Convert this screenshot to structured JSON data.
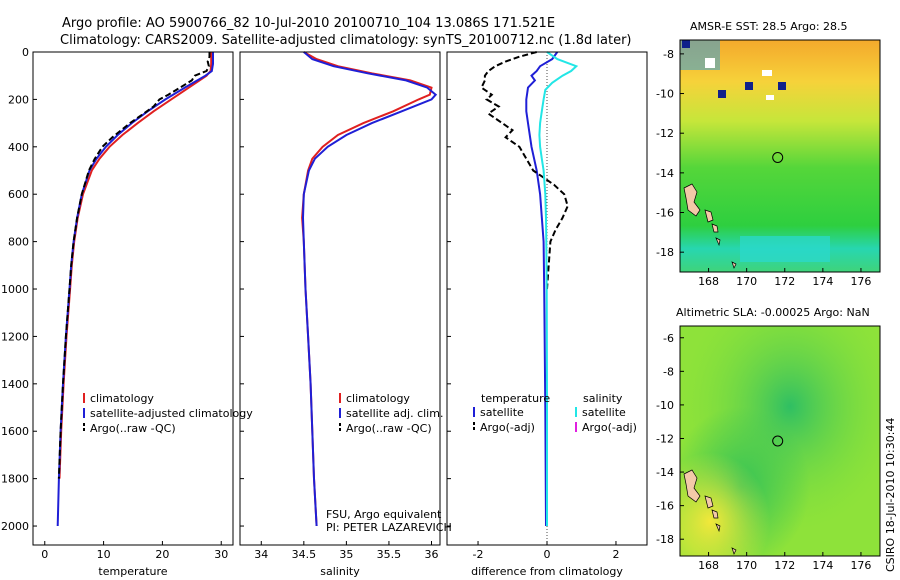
{
  "header": {
    "line1": "Argo profile: AO 5900766_82 10-Jul-2010 20100710_104 13.086S 171.521E",
    "line2": "Climatology: CARS2009. Satellite-adjusted climatology: synTS_20100712.nc (1.8d later)"
  },
  "colors": {
    "clim": "#e02020",
    "sat": "#1f1fd6",
    "argo": "#000000",
    "sal_sat": "#22e6e6",
    "sal_argo": "#e020e0"
  },
  "chart_data": [
    {
      "type": "line",
      "title": "",
      "xlabel": "temperature",
      "ylabel": "",
      "xlim": [
        -2,
        32
      ],
      "ylim": [
        2080,
        0
      ],
      "xticks": [
        0,
        10,
        20,
        30
      ],
      "yticks": [
        0,
        200,
        400,
        600,
        800,
        1000,
        1200,
        1400,
        1600,
        1800,
        2000
      ],
      "legend": [
        "climatology",
        "satellite-adjusted climatology",
        "Argo(..raw -QC)"
      ],
      "series": [
        {
          "name": "climatology",
          "key": "clim",
          "dash": "",
          "depth": [
            0,
            50,
            80,
            100,
            150,
            200,
            250,
            300,
            350,
            400,
            450,
            500,
            600,
            700,
            800,
            900,
            1000,
            1200,
            1400,
            1600,
            1800
          ],
          "values": [
            28.3,
            28.3,
            28.2,
            27.5,
            24.5,
            21.5,
            18.5,
            15.8,
            13.2,
            11.0,
            9.3,
            8.0,
            6.5,
            5.6,
            5.0,
            4.6,
            4.3,
            3.7,
            3.2,
            2.8,
            2.5
          ]
        },
        {
          "name": "satellite-adjusted climatology",
          "key": "sat",
          "dash": "",
          "depth": [
            0,
            50,
            80,
            100,
            150,
            200,
            250,
            300,
            350,
            400,
            450,
            500,
            600,
            700,
            800,
            900,
            1000,
            1200,
            1400,
            1600,
            1800,
            2000
          ],
          "values": [
            28.6,
            28.6,
            28.4,
            27.3,
            23.8,
            20.5,
            17.5,
            14.8,
            12.4,
            10.4,
            8.8,
            7.6,
            6.3,
            5.5,
            4.9,
            4.5,
            4.2,
            3.6,
            3.1,
            2.7,
            2.4,
            2.2
          ]
        },
        {
          "name": "Argo(..raw -QC)",
          "key": "argo",
          "dash": "6,3",
          "depth": [
            0,
            20,
            40,
            60,
            80,
            100,
            120,
            150,
            180,
            200,
            230,
            260,
            300,
            330,
            360,
            400,
            450,
            500,
            600,
            700,
            800,
            900,
            1000,
            1200,
            1400,
            1600,
            1800
          ],
          "values": [
            28.0,
            28.0,
            27.7,
            27.9,
            27.5,
            25.5,
            25.0,
            23.0,
            21.0,
            19.5,
            18.5,
            16.8,
            14.5,
            13.0,
            11.5,
            9.8,
            8.5,
            7.5,
            6.3,
            5.5,
            4.9,
            4.5,
            4.2,
            3.6,
            3.1,
            2.7,
            2.4
          ]
        }
      ]
    },
    {
      "type": "line",
      "xlabel": "salinity",
      "xlim": [
        33.75,
        36.1
      ],
      "ylim": [
        2080,
        0
      ],
      "xticks": [
        34,
        34.5,
        35,
        35.5,
        36
      ],
      "legend": [
        "climatology",
        "satellite adj. clim.",
        "Argo(..raw -QC)"
      ],
      "series": [
        {
          "name": "climatology",
          "key": "clim",
          "dash": "",
          "depth": [
            0,
            30,
            60,
            90,
            120,
            150,
            180,
            200,
            250,
            300,
            350,
            400,
            450,
            500,
            600,
            700,
            800,
            1000,
            1200,
            1400,
            1600,
            1800,
            2000
          ],
          "values": [
            34.5,
            34.65,
            34.9,
            35.3,
            35.75,
            36.0,
            35.98,
            35.85,
            35.55,
            35.2,
            34.9,
            34.72,
            34.6,
            34.55,
            34.5,
            34.48,
            34.5,
            34.52,
            34.55,
            34.58,
            34.6,
            34.62,
            34.65
          ]
        },
        {
          "name": "satellite adj. clim.",
          "key": "sat",
          "dash": "",
          "depth": [
            0,
            30,
            60,
            90,
            120,
            150,
            180,
            200,
            250,
            300,
            350,
            400,
            450,
            500,
            600,
            700,
            800,
            1000,
            1200,
            1400,
            1600,
            1800,
            2000
          ],
          "values": [
            34.5,
            34.6,
            34.85,
            35.25,
            35.7,
            35.95,
            36.05,
            36.0,
            35.65,
            35.3,
            35.0,
            34.78,
            34.63,
            34.56,
            34.5,
            34.49,
            34.5,
            34.52,
            34.55,
            34.58,
            34.6,
            34.62,
            34.65
          ]
        }
      ]
    },
    {
      "type": "line",
      "xlabel": "difference from climatology",
      "xlim": [
        -2.9,
        2.9
      ],
      "ylim": [
        2080,
        0
      ],
      "xticks": [
        -2,
        0,
        2
      ],
      "legend_temperature": {
        "heading": "temperature",
        "items": [
          "satellite",
          "Argo(-adj)"
        ]
      },
      "legend_salinity": {
        "heading": "salinity",
        "items": [
          "satellite",
          "Argo(-adj)"
        ]
      },
      "series": [
        {
          "name": "temperature satellite",
          "key": "sat",
          "dash": "",
          "depth": [
            0,
            30,
            60,
            80,
            100,
            120,
            150,
            200,
            250,
            300,
            400,
            500,
            600,
            800,
            1000,
            1500,
            2000
          ],
          "values": [
            0.3,
            0.15,
            -0.2,
            -0.3,
            -0.45,
            -0.35,
            -0.55,
            -0.6,
            -0.6,
            -0.55,
            -0.45,
            -0.3,
            -0.2,
            -0.1,
            -0.08,
            -0.05,
            -0.03
          ]
        },
        {
          "name": "temperature Argo(-adj)",
          "key": "argo",
          "dash": "6,3",
          "depth": [
            0,
            20,
            40,
            60,
            80,
            100,
            120,
            150,
            180,
            200,
            230,
            260,
            300,
            330,
            360,
            400,
            450,
            500,
            530,
            560,
            600,
            650,
            700,
            750,
            800,
            900,
            1000
          ],
          "values": [
            -0.3,
            -0.8,
            -1.2,
            -1.5,
            -1.7,
            -1.8,
            -1.8,
            -1.9,
            -1.6,
            -1.75,
            -1.4,
            -1.7,
            -1.3,
            -1.0,
            -1.2,
            -0.8,
            -0.6,
            -0.4,
            -0.1,
            0.2,
            0.5,
            0.6,
            0.45,
            0.25,
            0.1,
            0.05,
            0.0
          ]
        },
        {
          "name": "salinity satellite",
          "key": "sal_sat",
          "dash": "",
          "depth": [
            0,
            30,
            60,
            80,
            100,
            130,
            160,
            200,
            250,
            300,
            350,
            400,
            450,
            500,
            600,
            700,
            800,
            1000,
            1500,
            2000
          ],
          "values": [
            0.0,
            0.3,
            0.85,
            0.7,
            0.45,
            0.15,
            -0.05,
            -0.1,
            -0.15,
            -0.2,
            -0.22,
            -0.2,
            -0.15,
            -0.1,
            -0.05,
            -0.03,
            -0.02,
            -0.01,
            0.0,
            0.0
          ]
        }
      ]
    }
  ],
  "annotations": {
    "source": "FSU, Argo equivalent",
    "pi": "PI: PETER LAZAREVICH"
  },
  "maps": [
    {
      "title": "AMSR-E SST: 28.5 Argo: 28.5",
      "yticks": [
        "-8",
        "-10",
        "-12",
        "-14",
        "-16",
        "-18"
      ],
      "xticks": [
        "168",
        "170",
        "172",
        "174",
        "176"
      ]
    },
    {
      "title": "Altimetric SLA: -0.00025 Argo: NaN",
      "yticks": [
        "-6",
        "-8",
        "-10",
        "-12",
        "-14",
        "-16",
        "-18"
      ],
      "xticks": [
        "168",
        "170",
        "172",
        "174",
        "176"
      ]
    }
  ],
  "credit": "CSIRO 18-Jul-2010 10:30:44"
}
